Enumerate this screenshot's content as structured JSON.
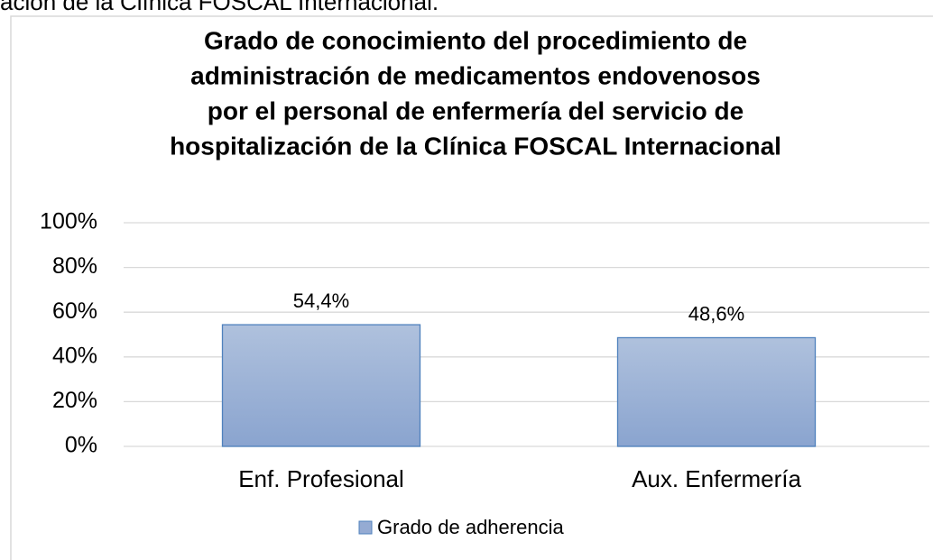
{
  "caption": "ación de la Clínica FOSCAL Internacional.",
  "chart_data": {
    "type": "bar",
    "title": [
      "Grado de conocimiento del procedimiento de",
      "administración de medicamentos endovenosos",
      "por el personal de enfermería del servicio de",
      "hospitalización de la Clínica FOSCAL Internacional"
    ],
    "categories": [
      "Enf. Profesional",
      "Aux. Enfermería"
    ],
    "series": [
      {
        "name": "Grado de adherencia",
        "color": "#95abd3",
        "values": [
          54.4,
          48.6
        ],
        "value_labels": [
          "54,4%",
          "48,6%"
        ]
      }
    ],
    "ylim": [
      0,
      100
    ],
    "yticks": [
      {
        "value": 0,
        "label": "0%"
      },
      {
        "value": 20,
        "label": "20%"
      },
      {
        "value": 40,
        "label": "40%"
      },
      {
        "value": 60,
        "label": "60%"
      },
      {
        "value": 80,
        "label": "80%"
      },
      {
        "value": 100,
        "label": "100%"
      }
    ],
    "grid": true,
    "legend": "bottom"
  }
}
